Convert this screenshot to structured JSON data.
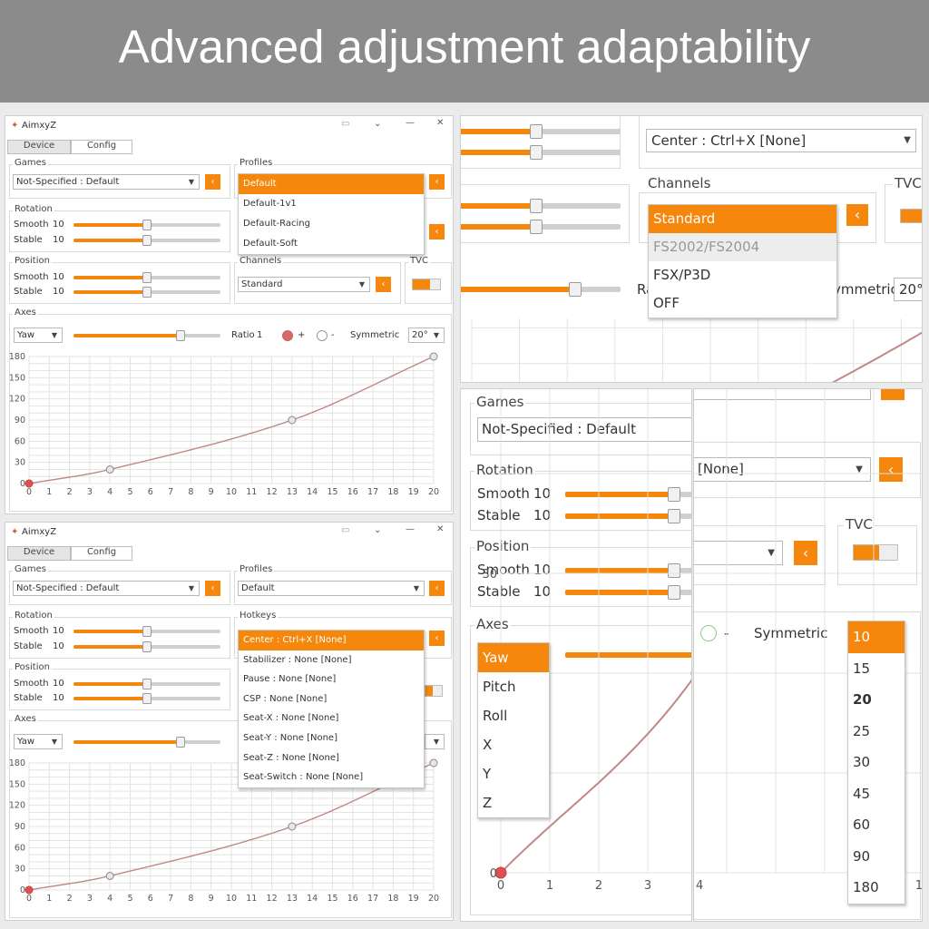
{
  "banner": {
    "title": "Advanced adjustment adaptability"
  },
  "app": {
    "title": "AimxyZ",
    "tabs": [
      "Device",
      "Config"
    ]
  },
  "colors": {
    "accent": "#f4870c",
    "curve": "#c08886",
    "grid": "#e3e3e3"
  },
  "labels": {
    "games": "Games",
    "profiles": "Profiles",
    "rotation": "Rotation",
    "position": "Position",
    "hotkeys": "Hotkeys",
    "channels": "Channels",
    "tvc": "TVC",
    "axes": "Axes",
    "smooth": "Smooth",
    "stable": "Stable",
    "ratio": "Ratio",
    "plus": "+",
    "minus": "-",
    "symmetric": "Symmetric",
    "ymmetric": "ymmetric"
  },
  "values": {
    "game": "Not-Specified : Default",
    "profile": "Default",
    "channel": "Standard",
    "hotkey": "Center : Ctrl+X [None]",
    "hotkey_trunc": "[None]",
    "axis": "Yaw",
    "symmetric": "20°",
    "symmetric_short": "20°",
    "smooth": "10",
    "stable": "10",
    "ratio": "1",
    "ratio_trunc": "Ra"
  },
  "sliders": {
    "smooth": 0.5,
    "stable": 0.5,
    "ratio": 0.73
  },
  "profiles_dropdown": [
    "Default",
    "Default-1v1",
    "Default-Racing",
    "Default-Soft"
  ],
  "hotkeys_dropdown": [
    "Center : Ctrl+X [None]",
    "Stabilizer : None [None]",
    "Pause : None [None]",
    "CSP : None [None]",
    "Seat-X : None [None]",
    "Seat-Y : None [None]",
    "Seat-Z : None [None]",
    "Seat-Switch : None [None]"
  ],
  "channels_dropdown": [
    "Standard",
    "FS2002/FS2004",
    "FSX/P3D",
    "OFF"
  ],
  "axes_dropdown": [
    "Yaw",
    "Pitch",
    "Roll",
    "X",
    "Y",
    "Z"
  ],
  "symmetric_dropdown": [
    "10",
    "15",
    "20",
    "25",
    "30",
    "45",
    "60",
    "90",
    "180"
  ],
  "chart_data": {
    "type": "line",
    "x_ticks": [
      "0",
      "1",
      "2",
      "3",
      "4",
      "5",
      "6",
      "7",
      "8",
      "9",
      "10",
      "11",
      "12",
      "13",
      "14",
      "15",
      "16",
      "17",
      "18",
      "19",
      "20"
    ],
    "y_ticks": [
      "0",
      "30",
      "60",
      "90",
      "120",
      "150",
      "180"
    ],
    "xlim": [
      0,
      20
    ],
    "ylim": [
      0,
      180
    ],
    "grid": true,
    "control_points": [
      {
        "x": 0,
        "y": 0
      },
      {
        "x": 4,
        "y": 20
      },
      {
        "x": 13,
        "y": 90
      },
      {
        "x": 20,
        "y": 180
      }
    ],
    "zoom_x_ticks": [
      "0",
      "1",
      "2",
      "3",
      "4",
      "5",
      "6"
    ],
    "zoom_y_ticks": [
      "0",
      "30"
    ],
    "zoom2_x_ticks": [
      "4",
      "15",
      "16",
      "17",
      "18"
    ]
  }
}
